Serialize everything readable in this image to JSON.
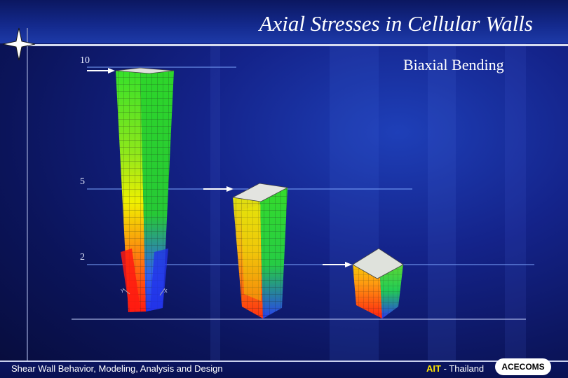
{
  "slide": {
    "title": "Axial Stresses in Cellular Walls",
    "subtitle": "Biaxial Bending",
    "levels": [
      "10",
      "5",
      "2"
    ],
    "axis_labels": [
      "Y",
      "X"
    ]
  },
  "footer": {
    "course": "Shear Wall Behavior, Modeling, Analysis and Design",
    "institute": "AIT",
    "country": "- Thailand",
    "logo": "ACECOMS"
  },
  "colors": {
    "background": "#14238a",
    "title_text": "#ffffff",
    "ait_yellow": "#ffe500",
    "stress_green": "#22dd22",
    "stress_yellow": "#f2f20a",
    "stress_red": "#ff2a10",
    "stress_blue": "#2a3cf0"
  },
  "icons": [
    "four-point-star-icon",
    "arrow-right-icon"
  ]
}
